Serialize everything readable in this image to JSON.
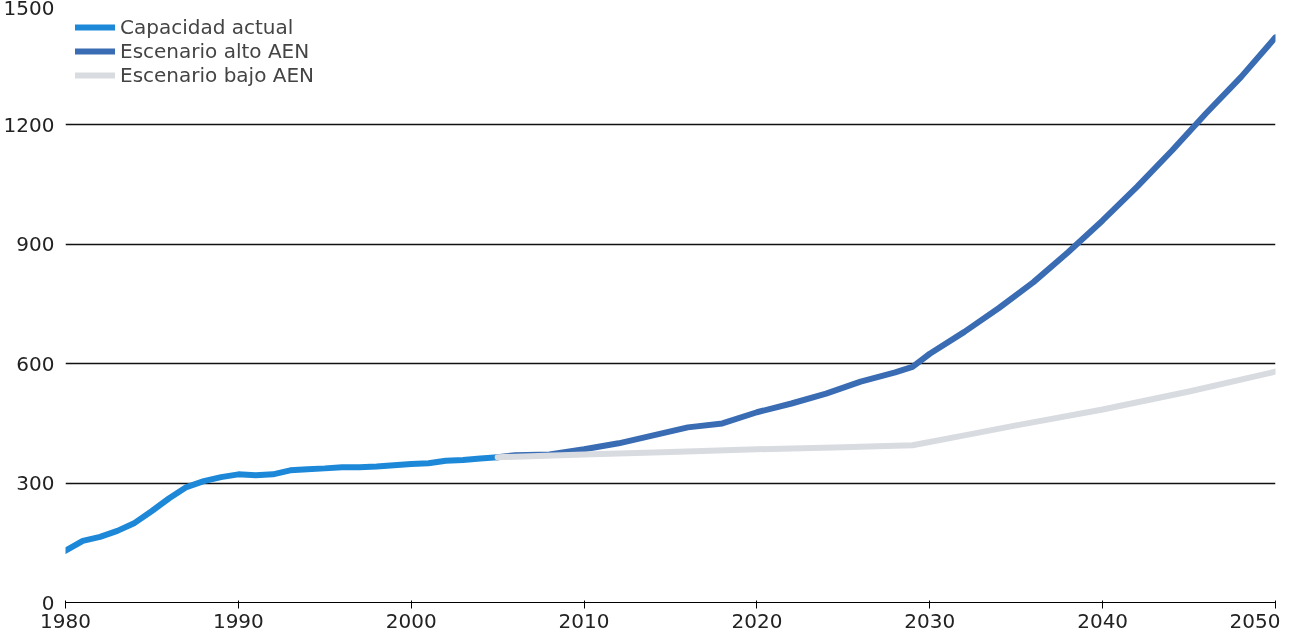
{
  "chart_data": {
    "type": "line",
    "xlim": [
      1980,
      2050
    ],
    "ylim": [
      0,
      1500
    ],
    "xticks": [
      1980,
      1990,
      2000,
      2010,
      2020,
      2030,
      2040,
      2050
    ],
    "yticks": [
      0,
      300,
      600,
      900,
      1200,
      1500
    ],
    "grid": "y",
    "legend": "top left",
    "line_style": "solid",
    "marker": "none",
    "series": [
      {
        "name": "Capacidad actual",
        "color": "#1e88d8",
        "x": [
          1980,
          1981,
          1982,
          1983,
          1984,
          1985,
          1986,
          1987,
          1988,
          1989,
          1990,
          1991,
          1992,
          1993,
          1994,
          1995,
          1996,
          1997,
          1998,
          1999,
          2000,
          2001,
          2002,
          2003,
          2004,
          2005
        ],
        "values": [
          130,
          155,
          165,
          180,
          200,
          230,
          262,
          290,
          305,
          315,
          322,
          320,
          322,
          332,
          335,
          337,
          340,
          340,
          342,
          345,
          348,
          350,
          356,
          358,
          362,
          365
        ]
      },
      {
        "name": "Escenario alto AEN",
        "color": "#3a6cb4",
        "x": [
          2005,
          2006,
          2008,
          2010,
          2012,
          2014,
          2016,
          2018,
          2020,
          2022,
          2024,
          2026,
          2028,
          2029,
          2030,
          2032,
          2034,
          2036,
          2038,
          2040,
          2042,
          2044,
          2046,
          2048,
          2050
        ],
        "values": [
          365,
          370,
          372,
          385,
          400,
          420,
          440,
          450,
          478,
          500,
          525,
          555,
          578,
          592,
          625,
          680,
          740,
          805,
          880,
          960,
          1045,
          1135,
          1230,
          1320,
          1420
        ]
      },
      {
        "name": "Escenario bajo AEN",
        "color": "#d8dbe0",
        "x": [
          2005,
          2010,
          2015,
          2020,
          2025,
          2029,
          2032,
          2035,
          2040,
          2045,
          2050
        ],
        "values": [
          365,
          372,
          378,
          385,
          390,
          395,
          420,
          445,
          485,
          530,
          580
        ]
      }
    ]
  }
}
